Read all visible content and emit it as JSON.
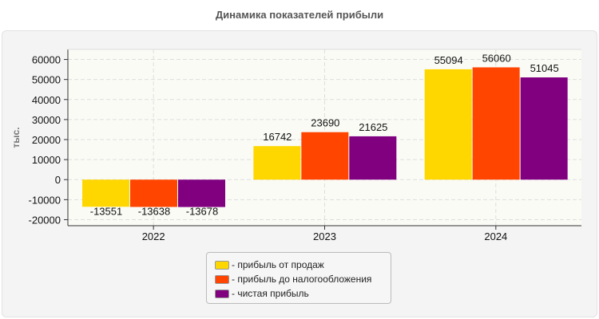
{
  "chart_data": {
    "type": "bar",
    "title": "Динамика показателей прибыли",
    "ylabel": "тыс.",
    "xlabel": "",
    "categories": [
      "2022",
      "2023",
      "2024"
    ],
    "series": [
      {
        "name": "- прибыль от продаж",
        "color": "#FFD700",
        "values": [
          -13551,
          16742,
          55094
        ]
      },
      {
        "name": "- прибыль до налогообложения",
        "color": "#FF4500",
        "values": [
          -13638,
          23690,
          56060
        ]
      },
      {
        "name": "- чистая прибыль",
        "color": "#800080",
        "values": [
          -13678,
          21625,
          51045
        ]
      }
    ],
    "ylim": [
      -23000,
      65000
    ],
    "yticks": [
      -20000,
      -10000,
      0,
      10000,
      20000,
      30000,
      40000,
      50000,
      60000
    ],
    "grid": true,
    "legend": "bottom"
  }
}
